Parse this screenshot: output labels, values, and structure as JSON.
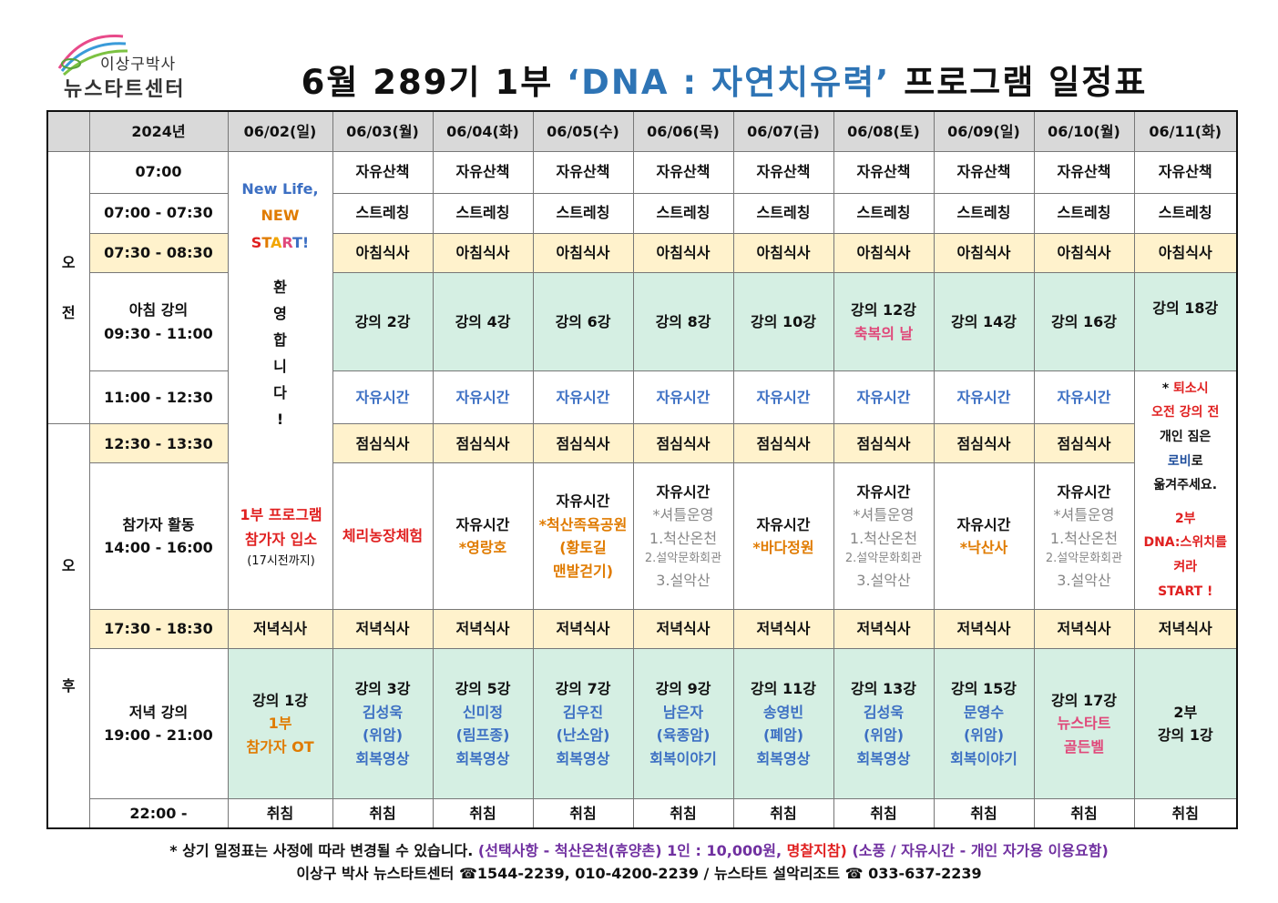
{
  "logo": {
    "line1": "이상구박사",
    "line2": "뉴스타트센터"
  },
  "title": {
    "prefix": "6월 289기 1부 ",
    "accent": "‘DNA : 자연치유력’",
    "suffix": " 프로그램 일정표"
  },
  "header": {
    "year": "2024년",
    "days": [
      "06/02(일)",
      "06/03(월)",
      "06/04(화)",
      "06/05(수)",
      "06/06(목)",
      "06/07(금)",
      "06/08(토)",
      "06/09(일)",
      "06/10(월)",
      "06/11(화)"
    ]
  },
  "periods": {
    "am": [
      "오",
      "전"
    ],
    "pm": [
      "오",
      "후"
    ]
  },
  "day1": {
    "new_life": "New Life,",
    "new_start_1": "NEW",
    "start_letters": [
      "S",
      "T",
      "A",
      "R",
      "T",
      "!"
    ],
    "welcome": [
      "환",
      "영",
      "합",
      "니",
      "다",
      "!"
    ],
    "entry_1": "1부 프로그램",
    "entry_2": "참가자 입소",
    "entry_3": "(17시전까지)",
    "dinner": "저녁식사",
    "ev_1": "강의 1강",
    "ev_2": "1부",
    "ev_3": "참가자 OT",
    "sleep": "취침"
  },
  "rows": {
    "r1": {
      "time": "07:00",
      "text": "자유산책"
    },
    "r2": {
      "time": "07:00 - 07:30",
      "text": "스트레칭"
    },
    "r3": {
      "time": "07:30 - 08:30",
      "text": "아침식사"
    },
    "r4": {
      "time_1": "아침 강의",
      "time_2": "09:30 - 11:00"
    },
    "r5": {
      "time": "11:00 - 12:30",
      "text": "자유시간"
    },
    "r6": {
      "time": "12:30 - 13:30",
      "text": "점심식사"
    },
    "r7": {
      "time_1": "참가자 활동",
      "time_2": "14:00 - 16:00"
    },
    "r8": {
      "time": "17:30 - 18:30",
      "text": "저녁식사"
    },
    "r9": {
      "time_1": "저녁 강의",
      "time_2": "19:00 - 21:00"
    },
    "r10": {
      "time": "22:00 -",
      "text": "취침"
    }
  },
  "morning_lectures": [
    "강의 2강",
    "강의 4강",
    "강의 6강",
    "강의 8강",
    "강의 10강",
    "강의 12강",
    "강의 14강",
    "강의 16강",
    "강의 18강"
  ],
  "special_day": "축복의 날",
  "activities": {
    "d3": "체리농장체험",
    "d4": [
      "자유시간",
      "*영랑호"
    ],
    "d5": [
      "자유시간",
      "*척산족욕공원",
      "(황토길",
      "맨발걷기)"
    ],
    "d6": [
      "자유시간",
      "*셔틀운영",
      "1.척산온천",
      "2.설악문화회관",
      "3.설악산"
    ],
    "d7": [
      "자유시간",
      "*바다정원"
    ],
    "d8": [
      "자유시간",
      "*셔틀운영",
      "1.척산온천",
      "2.설악문화회관",
      "3.설악산"
    ],
    "d9": [
      "자유시간",
      "*낙산사"
    ],
    "d10": [
      "자유시간",
      "*셔틀운영",
      "1.척산온천",
      "2.설악문화회관",
      "3.설악산"
    ]
  },
  "last_day_note": {
    "star": "*",
    "l1": "퇴소시",
    "l2": "오전 강의 전",
    "l3": "개인 짐은",
    "l4a": "로비",
    "l4b": "로",
    "l5": "옮겨주세요.",
    "l6": "2부",
    "l7": "DNA:스위치를",
    "l8": "켜라",
    "l9": "START !"
  },
  "evening": [
    {
      "l1": "강의 3강",
      "l2": "김성욱",
      "l3": "(위암)",
      "l4": "회복영상"
    },
    {
      "l1": "강의 5강",
      "l2": "신미정",
      "l3": "(림프종)",
      "l4": "회복영상"
    },
    {
      "l1": "강의 7강",
      "l2": "김우진",
      "l3": "(난소암)",
      "l4": "회복영상"
    },
    {
      "l1": "강의 9강",
      "l2": "남은자",
      "l3": "(육종암)",
      "l4": "회복이야기"
    },
    {
      "l1": "강의 11강",
      "l2": "송영빈",
      "l3": "(폐암)",
      "l4": "회복영상"
    },
    {
      "l1": "강의 13강",
      "l2": "김성욱",
      "l3": "(위암)",
      "l4": "회복영상"
    },
    {
      "l1": "강의 15강",
      "l2": "문영수",
      "l3": "(위암)",
      "l4": "회복이야기"
    },
    {
      "l1": "강의 17강",
      "l2": "뉴스타트",
      "l3": "골든벨"
    },
    {
      "l1": "2부",
      "l2": "강의 1강"
    }
  ],
  "footer": {
    "a": "* 상기 일정표는 사정에 따라 변경될 수 있습니다.",
    "b": "(선택사항 - 척산온천(휴양촌) 1인 : 10,000원,",
    "c": "명찰지참)",
    "d": "(소풍 / 자유시간 - 개인 자가용 이용요함)",
    "line2": "이상구 박사 뉴스타트센터 ☎1544-2239, 010-4200-2239 /  뉴스타트 설악리조트 ☎ 033-637-2239"
  },
  "colors": {
    "accent": "#2e74b5",
    "header_bg": "#d9d9d9",
    "meal_bg": "#fff2cc",
    "lecture_bg": "#d5efe3",
    "blue_text": "#3c6fc3",
    "red_text": "#e02020",
    "orange_text": "#e07b00",
    "pink_text": "#e0487a"
  }
}
